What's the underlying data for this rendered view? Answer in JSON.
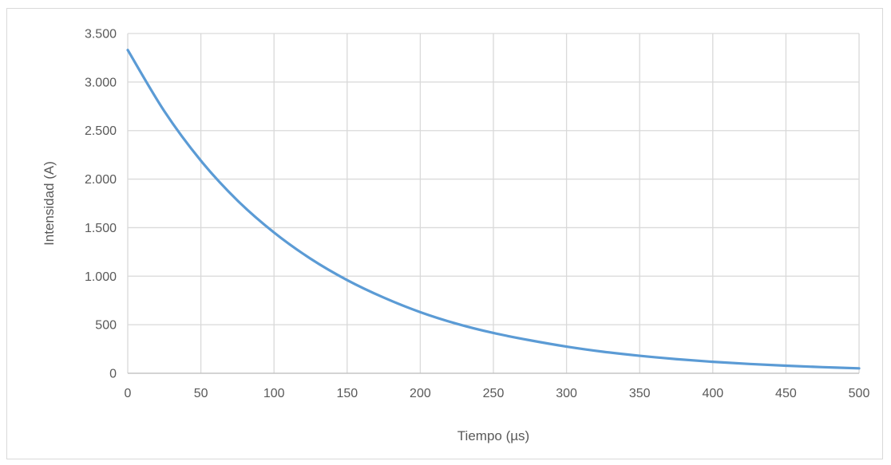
{
  "chart_data": {
    "type": "line",
    "title": "",
    "xlabel": "Tiempo (µs)",
    "ylabel": "Intensidad (A)",
    "xlim": [
      0,
      500
    ],
    "ylim": [
      0,
      3500
    ],
    "x_ticks": [
      0,
      50,
      100,
      150,
      200,
      250,
      300,
      350,
      400,
      450,
      500
    ],
    "x_tick_labels": [
      "0",
      "50",
      "100",
      "150",
      "200",
      "250",
      "300",
      "350",
      "400",
      "450",
      "500"
    ],
    "y_ticks": [
      0,
      500,
      1000,
      1500,
      2000,
      2500,
      3000,
      3500
    ],
    "y_tick_labels": [
      "0",
      "500",
      "1.000",
      "1.500",
      "2.000",
      "2.500",
      "3.000",
      "3.500"
    ],
    "grid": true,
    "legend": "none",
    "series": [
      {
        "color": "#5b9bd5",
        "x": [
          0,
          25,
          50,
          75,
          100,
          125,
          150,
          175,
          200,
          225,
          250,
          275,
          300,
          325,
          350,
          375,
          400,
          425,
          450,
          475,
          500
        ],
        "y": [
          3330,
          2700,
          2190,
          1780,
          1450,
          1180,
          960,
          780,
          630,
          510,
          415,
          340,
          275,
          222,
          180,
          146,
          118,
          96,
          78,
          63,
          51
        ]
      }
    ]
  }
}
